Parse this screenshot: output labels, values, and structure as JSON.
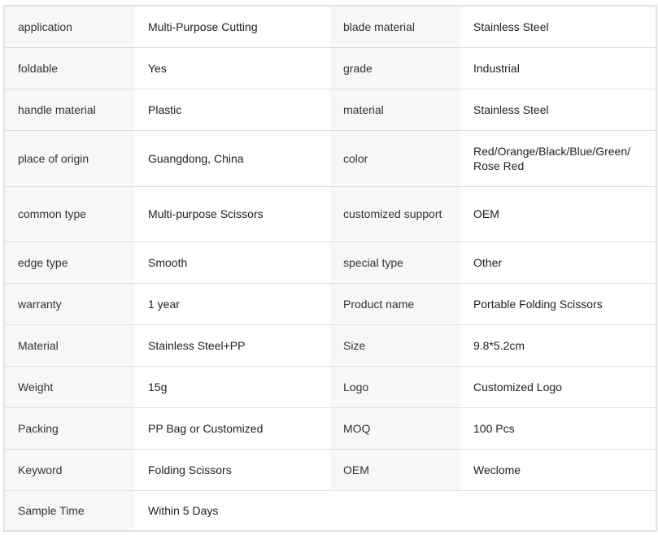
{
  "rows": [
    {
      "k1": "application",
      "v1": "Multi-Purpose Cutting",
      "k2": "blade material",
      "v2": "Stainless Steel"
    },
    {
      "k1": "foldable",
      "v1": "Yes",
      "k2": "grade",
      "v2": "Industrial"
    },
    {
      "k1": "handle material",
      "v1": "Plastic",
      "k2": "material",
      "v2": "Stainless Steel"
    },
    {
      "k1": "place of origin",
      "v1": "Guangdong, China",
      "k2": "color",
      "v2": "Red/Orange/Black/Blue/Green/ Rose Red"
    },
    {
      "k1": "common type",
      "v1": "Multi-purpose Scissors",
      "k2": "customized support",
      "v2": "OEM"
    },
    {
      "k1": "edge type",
      "v1": "Smooth",
      "k2": "special type",
      "v2": "Other"
    },
    {
      "k1": "warranty",
      "v1": "1 year",
      "k2": "Product name",
      "v2": "Portable Folding Scissors"
    },
    {
      "k1": "Material",
      "v1": "Stainless Steel+PP",
      "k2": "Size",
      "v2": "9.8*5.2cm"
    },
    {
      "k1": "Weight",
      "v1": "15g",
      "k2": "Logo",
      "v2": "Customized Logo"
    },
    {
      "k1": "Packing",
      "v1": "PP Bag or Customized",
      "k2": "MOQ",
      "v2": "100 Pcs"
    },
    {
      "k1": "Keyword",
      "v1": "Folding Scissors",
      "k2": "OEM",
      "v2": "Weclome"
    },
    {
      "k1": "Sample Time",
      "v1": "Within 5 Days"
    }
  ]
}
